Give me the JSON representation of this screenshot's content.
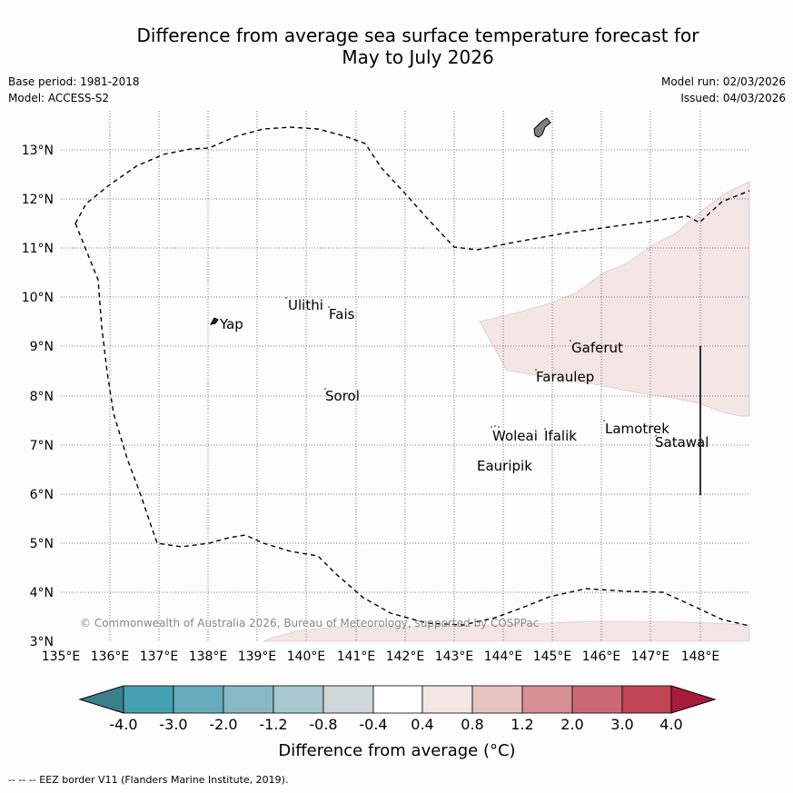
{
  "title_line1": "Difference from average sea surface temperature forecast for",
  "title_line2": "May to July 2026",
  "base_period": "Base period: 1981-2018",
  "model": "Model: ACCESS-S2",
  "model_run": "Model run: 02/03/2026",
  "issued": "Issued: 04/03/2026",
  "lat_labels": [
    "13°N",
    "12°N",
    "11°N",
    "10°N",
    "9°N",
    "8°N",
    "7°N",
    "6°N",
    "5°N",
    "4°N",
    "3°N"
  ],
  "lon_labels": [
    "135°E",
    "136°E",
    "137°E",
    "138°E",
    "139°E",
    "140°E",
    "141°E",
    "142°E",
    "143°E",
    "144°E",
    "145°E",
    "146°E",
    "147°E",
    "148°E"
  ],
  "places": [
    {
      "name": "Ulithi",
      "lon": 139.8,
      "lat": 9.8
    },
    {
      "name": "Fais",
      "lon": 140.5,
      "lat": 9.6
    },
    {
      "name": "Yap",
      "lon": 138.1,
      "lat": 9.4
    },
    {
      "name": "Gaferut",
      "lon": 145.4,
      "lat": 8.9
    },
    {
      "name": "Faraulep",
      "lon": 144.6,
      "lat": 8.3
    },
    {
      "name": "Sorol",
      "lon": 140.4,
      "lat": 7.9
    },
    {
      "name": "Lamotrek",
      "lon": 146.1,
      "lat": 7.3
    },
    {
      "name": "Satawal",
      "lon": 147.1,
      "lat": 7.0
    },
    {
      "name": "Woleai",
      "lon": 143.8,
      "lat": 7.1
    },
    {
      "name": "Ifalik",
      "lon": 144.9,
      "lat": 7.1
    },
    {
      "name": "Eauripik",
      "lon": 143.4,
      "lat": 6.5
    }
  ],
  "copyright": "© Commonwealth of Australia 2026, Bureau of Meteorology, supported by COSPPac",
  "colorbar": {
    "label": "Difference from average (°C)",
    "ticks": [
      "-4.0",
      "-3.0",
      "-2.0",
      "-1.2",
      "-0.8",
      "-0.4",
      "0.4",
      "0.8",
      "1.2",
      "2.0",
      "3.0",
      "4.0"
    ],
    "colors": [
      "#45a1b2",
      "#66acbc",
      "#88b8c4",
      "#a8c8cf",
      "#d0d8da",
      "#ffffff",
      "#f3e6e5",
      "#e7c4c0",
      "#d78e94",
      "#ca6975",
      "#c04555"
    ],
    "under_color": "#3b7f8a",
    "over_color": "#a81c3a"
  },
  "anomaly_color": "#f3e6e5",
  "footer": "--  --  -- EEZ border V11 (Flanders Marine Institute, 2019)."
}
